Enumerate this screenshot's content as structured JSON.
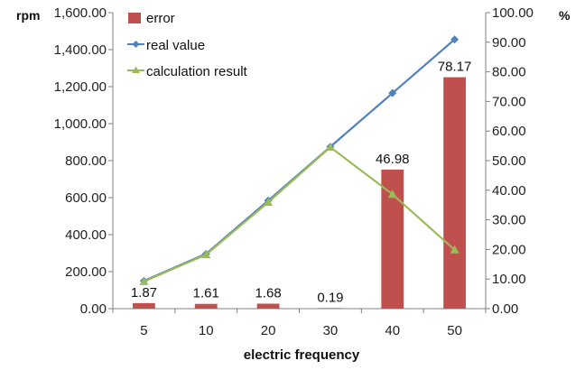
{
  "chart_data": {
    "type": "bar+line",
    "title": "",
    "xlabel": "electric frequency",
    "categories": [
      "5",
      "10",
      "20",
      "30",
      "40",
      "50"
    ],
    "y_left": {
      "unit": "rpm",
      "range": [
        0,
        1600
      ],
      "ticks": [
        "0.00",
        "200.00",
        "400.00",
        "600.00",
        "800.00",
        "1,000.00",
        "1,200.00",
        "1,400.00",
        "1,600.00"
      ]
    },
    "y_right": {
      "unit": "%",
      "range": [
        0,
        100
      ],
      "ticks": [
        "0.00",
        "10.00",
        "20.00",
        "30.00",
        "40.00",
        "50.00",
        "60.00",
        "70.00",
        "80.00",
        "90.00",
        "100.00"
      ]
    },
    "series": [
      {
        "name": "error",
        "kind": "bar",
        "axis": "right",
        "color": "#c0504d",
        "values": [
          1.87,
          1.61,
          1.68,
          0.19,
          46.98,
          78.17
        ],
        "labels": [
          "1.87",
          "1.61",
          "1.68",
          "0.19",
          "46.98",
          "78.17"
        ]
      },
      {
        "name": "real value",
        "kind": "line",
        "axis": "left",
        "marker": "diamond",
        "color": "#4f81bd",
        "values": [
          150,
          296,
          584,
          875,
          1165,
          1455
        ]
      },
      {
        "name": "calculation result",
        "kind": "line",
        "axis": "left",
        "marker": "triangle",
        "color": "#9bbb59",
        "values": [
          147,
          292,
          575,
          873,
          618,
          318
        ]
      }
    ],
    "legend_position": "top-left inside plot",
    "grid": false
  }
}
